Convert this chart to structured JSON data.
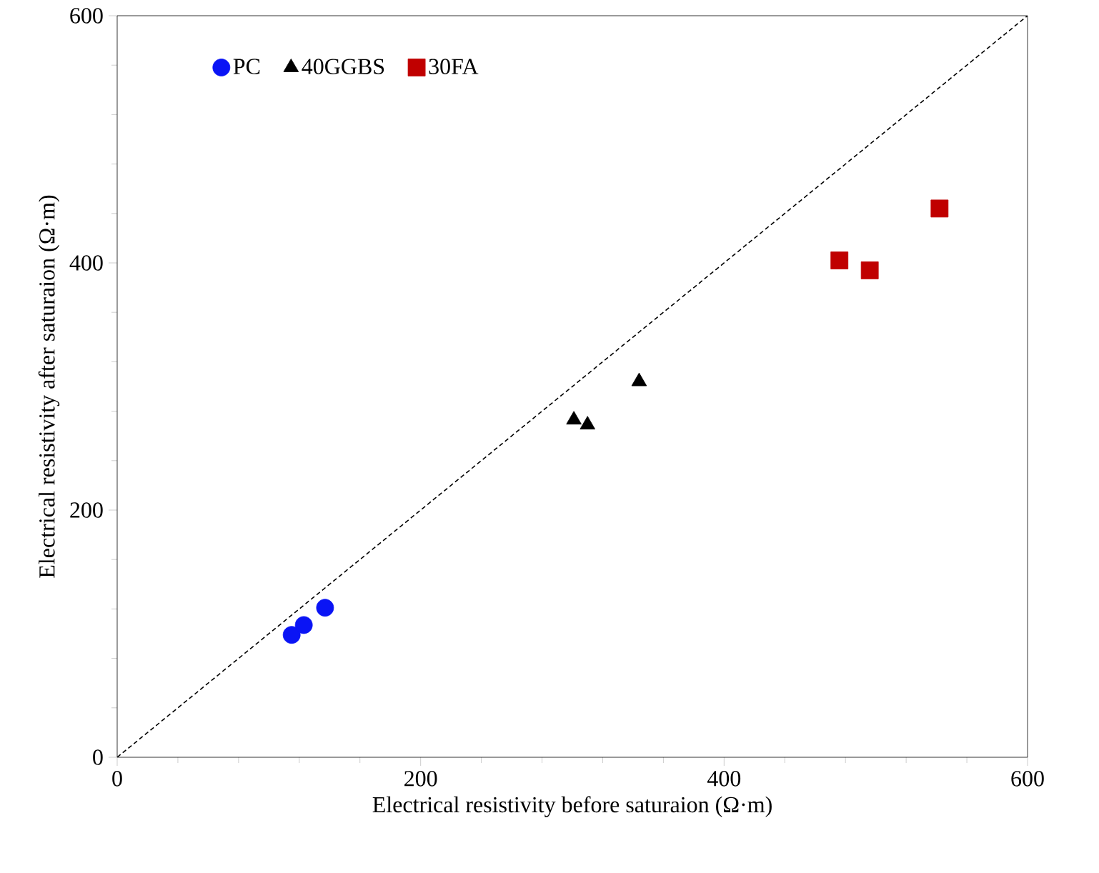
{
  "chart_data": {
    "type": "scatter",
    "xlabel": "Electrical resistivity  before saturaion  (Ω·m)",
    "ylabel": "Electrical resistivity  after saturaion  (Ω·m)",
    "xlim": [
      0,
      600
    ],
    "ylim": [
      0,
      600
    ],
    "xticks": [
      0,
      200,
      400,
      600
    ],
    "yticks": [
      0,
      200,
      400,
      600
    ],
    "grid": false,
    "legend": "top left",
    "series": [
      {
        "name": "PC",
        "color": "#0a14f5",
        "marker": "circle",
        "x": [
          115,
          123,
          137
        ],
        "values": [
          99,
          107,
          121
        ]
      },
      {
        "name": "40GGBS",
        "color": "#000000",
        "marker": "triangle",
        "x": [
          301,
          310,
          344
        ],
        "values": [
          273,
          269,
          304
        ]
      },
      {
        "name": "30FA",
        "color": "#c00000",
        "marker": "square",
        "x": [
          476,
          496,
          542
        ],
        "values": [
          402,
          394,
          444
        ]
      },
      {
        "type": "line",
        "color": "#000000",
        "line_style": "dashed",
        "marker": "none",
        "x": [
          0,
          600
        ],
        "values": [
          0,
          600
        ]
      }
    ]
  }
}
